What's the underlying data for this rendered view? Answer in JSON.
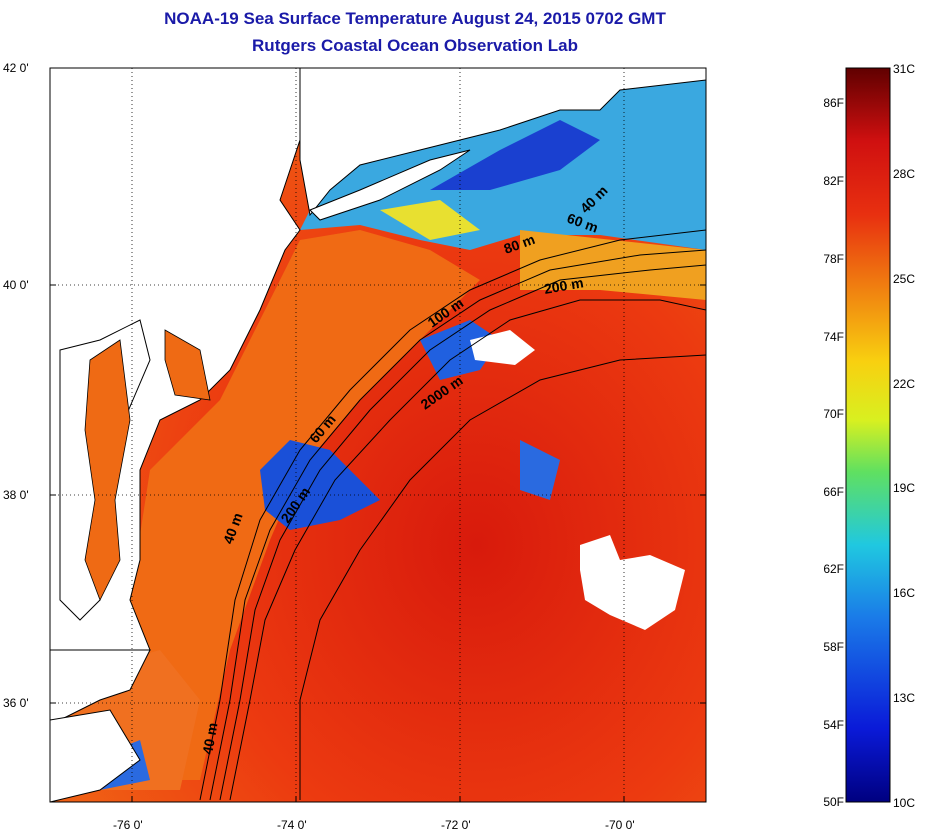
{
  "title": {
    "line1": "NOAA-19 Sea Surface Temperature August 24, 2015 0702 GMT",
    "line2": "Rutgers Coastal Ocean Observation Lab"
  },
  "map": {
    "lat_labels": [
      "42 0'",
      "40 0'",
      "38 0'",
      "36 0'"
    ],
    "lon_labels": [
      "-76 0'",
      "-74 0'",
      "-72 0'",
      "-70 0'"
    ],
    "contours": [
      "40 m",
      "60 m",
      "80 m",
      "200 m",
      "100 m",
      "2000 m",
      "60 m",
      "200 m",
      "40 m",
      "40 m"
    ]
  },
  "colorbar": {
    "fahrenheit": [
      "86F",
      "82F",
      "78F",
      "74F",
      "70F",
      "66F",
      "62F",
      "58F",
      "54F",
      "50F"
    ],
    "celsius": [
      "31C",
      "28C",
      "25C",
      "22C",
      "19C",
      "16C",
      "13C",
      "10C"
    ]
  },
  "colors": {
    "title": "#1a1aa8",
    "warm": "#e8300c",
    "hot": "#c51408",
    "mid": "#f07a14",
    "cool": "#3aa0e8",
    "cold": "#1a3ad0",
    "land": "#ffffff"
  }
}
